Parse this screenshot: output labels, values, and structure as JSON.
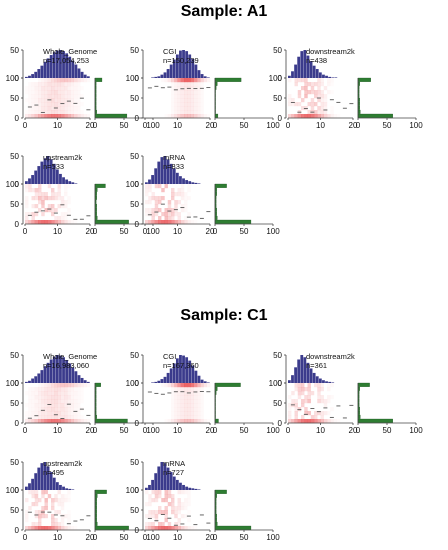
{
  "figure": {
    "samples": [
      {
        "title": "Sample: A1"
      },
      {
        "title": "Sample: C1"
      }
    ]
  },
  "colors": {
    "histogram": "#3b3b8c",
    "marginal": "#2e7d32",
    "heat": "#e8474a",
    "axis": "#444444",
    "median": "#555555"
  },
  "chart_data": [
    {
      "type": "heatmap",
      "sample": "Sample: A1",
      "region": "Whole_Genome",
      "count": "n=17,054,253",
      "xlim": [
        0,
        20
      ],
      "ylim": [
        0,
        100
      ],
      "yticks": [
        0,
        50,
        100
      ],
      "hist_yticks": [
        0,
        50
      ],
      "marginal_xticks": [
        0,
        50,
        100
      ],
      "profile": "wide",
      "top_hist": [
        2,
        4,
        7,
        11,
        16,
        22,
        29,
        35,
        41,
        46,
        49,
        50,
        48,
        44,
        38,
        31,
        24,
        17,
        11,
        6,
        3
      ],
      "side_hist": [
        55,
        3,
        2,
        2,
        2,
        2,
        2,
        2,
        2,
        12
      ]
    },
    {
      "type": "heatmap",
      "sample": "Sample: A1",
      "region": "CGI",
      "count": "n=150,239",
      "xlim": [
        0,
        20
      ],
      "ylim": [
        0,
        100
      ],
      "yticks": [
        0,
        50,
        100
      ],
      "hist_yticks": [
        0,
        50
      ],
      "marginal_xticks": [
        0,
        50,
        100
      ],
      "profile": "high",
      "top_hist": [
        0,
        0,
        1,
        2,
        3,
        6,
        10,
        16,
        24,
        33,
        42,
        49,
        50,
        48,
        42,
        34,
        24,
        14,
        7,
        3,
        1
      ],
      "side_hist": [
        5,
        1,
        1,
        1,
        1,
        1,
        1,
        2,
        4,
        45
      ]
    },
    {
      "type": "heatmap",
      "sample": "Sample: A1",
      "region": "downstream2k",
      "count": "n=438",
      "xlim": [
        0,
        20
      ],
      "ylim": [
        0,
        100
      ],
      "yticks": [
        0,
        50,
        100
      ],
      "hist_yticks": [
        0,
        50
      ],
      "marginal_xticks": [
        0,
        50,
        100
      ],
      "profile": "sparse",
      "top_hist": [
        4,
        12,
        24,
        38,
        48,
        50,
        40,
        30,
        22,
        16,
        10,
        6,
        4,
        2,
        1,
        1,
        0,
        0,
        0,
        0,
        0
      ],
      "side_hist": [
        60,
        4,
        3,
        3,
        3,
        2,
        2,
        2,
        3,
        22
      ]
    },
    {
      "type": "heatmap",
      "sample": "Sample: A1",
      "region": "upstream2k",
      "count": "n=533",
      "xlim": [
        0,
        20
      ],
      "ylim": [
        0,
        100
      ],
      "yticks": [
        0,
        50,
        100
      ],
      "hist_yticks": [
        0,
        50
      ],
      "marginal_xticks": [
        0,
        50,
        100
      ],
      "profile": "sparse",
      "top_hist": [
        5,
        10,
        16,
        24,
        32,
        40,
        46,
        50,
        44,
        36,
        26,
        18,
        12,
        8,
        5,
        3,
        1,
        0,
        0,
        0,
        0
      ],
      "side_hist": [
        58,
        4,
        3,
        3,
        3,
        2,
        3,
        3,
        4,
        18
      ]
    },
    {
      "type": "heatmap",
      "sample": "Sample: A1",
      "region": "mRNA",
      "count": "n=833",
      "xlim": [
        0,
        20
      ],
      "ylim": [
        0,
        100
      ],
      "yticks": [
        0,
        50,
        100
      ],
      "hist_yticks": [
        0,
        50
      ],
      "marginal_xticks": [
        0,
        50,
        100
      ],
      "profile": "sparse",
      "top_hist": [
        3,
        8,
        16,
        28,
        40,
        48,
        50,
        44,
        36,
        28,
        20,
        14,
        10,
        7,
        5,
        3,
        2,
        1,
        0,
        0,
        0
      ],
      "side_hist": [
        62,
        4,
        3,
        3,
        2,
        2,
        2,
        3,
        3,
        20
      ]
    },
    {
      "type": "heatmap",
      "sample": "Sample: C1",
      "region": "Whole_Genome",
      "count": "n=16,983,060",
      "xlim": [
        0,
        20
      ],
      "ylim": [
        0,
        100
      ],
      "yticks": [
        0,
        50,
        100
      ],
      "hist_yticks": [
        0,
        50
      ],
      "marginal_xticks": [
        0,
        50,
        100
      ],
      "profile": "wide",
      "top_hist": [
        2,
        4,
        8,
        12,
        17,
        23,
        30,
        36,
        42,
        47,
        50,
        49,
        46,
        41,
        35,
        28,
        21,
        14,
        9,
        5,
        2
      ],
      "side_hist": [
        56,
        3,
        2,
        2,
        2,
        2,
        2,
        2,
        2,
        10
      ]
    },
    {
      "type": "heatmap",
      "sample": "Sample: C1",
      "region": "CGI",
      "count": "n=167,360",
      "xlim": [
        0,
        20
      ],
      "ylim": [
        0,
        100
      ],
      "yticks": [
        0,
        50,
        100
      ],
      "hist_yticks": [
        0,
        50
      ],
      "marginal_xticks": [
        0,
        50,
        100
      ],
      "profile": "high",
      "top_hist": [
        0,
        0,
        1,
        2,
        4,
        7,
        11,
        18,
        26,
        35,
        44,
        50,
        49,
        46,
        40,
        31,
        22,
        13,
        6,
        3,
        1
      ],
      "side_hist": [
        6,
        1,
        1,
        1,
        1,
        1,
        1,
        2,
        4,
        44
      ]
    },
    {
      "type": "heatmap",
      "sample": "Sample: C1",
      "region": "downstream2k",
      "count": "n=361",
      "xlim": [
        0,
        20
      ],
      "ylim": [
        0,
        100
      ],
      "yticks": [
        0,
        50,
        100
      ],
      "hist_yticks": [
        0,
        50
      ],
      "marginal_xticks": [
        0,
        50,
        100
      ],
      "profile": "sparse",
      "top_hist": [
        5,
        14,
        28,
        42,
        50,
        46,
        36,
        26,
        18,
        12,
        8,
        5,
        3,
        2,
        1,
        0,
        0,
        0,
        0,
        0,
        0
      ],
      "side_hist": [
        60,
        4,
        3,
        3,
        2,
        2,
        2,
        2,
        3,
        20
      ]
    },
    {
      "type": "heatmap",
      "sample": "Sample: C1",
      "region": "upstream2k",
      "count": "n=495",
      "xlim": [
        0,
        20
      ],
      "ylim": [
        0,
        100
      ],
      "yticks": [
        0,
        50,
        100
      ],
      "hist_yticks": [
        0,
        50
      ],
      "marginal_xticks": [
        0,
        50,
        100
      ],
      "profile": "sparse",
      "top_hist": [
        6,
        12,
        20,
        30,
        40,
        48,
        50,
        42,
        32,
        22,
        14,
        9,
        6,
        3,
        2,
        1,
        0,
        0,
        0,
        0,
        0
      ],
      "side_hist": [
        58,
        4,
        3,
        3,
        3,
        3,
        3,
        3,
        4,
        20
      ]
    },
    {
      "type": "heatmap",
      "sample": "Sample: C1",
      "region": "mRNA",
      "count": "n=727",
      "xlim": [
        0,
        20
      ],
      "ylim": [
        0,
        100
      ],
      "yticks": [
        0,
        50,
        100
      ],
      "hist_yticks": [
        0,
        50
      ],
      "marginal_xticks": [
        0,
        50,
        100
      ],
      "profile": "sparse",
      "top_hist": [
        4,
        9,
        18,
        30,
        42,
        50,
        48,
        40,
        32,
        24,
        18,
        13,
        9,
        6,
        4,
        3,
        2,
        1,
        0,
        0,
        0
      ],
      "side_hist": [
        62,
        4,
        3,
        3,
        2,
        2,
        2,
        2,
        3,
        20
      ]
    }
  ]
}
